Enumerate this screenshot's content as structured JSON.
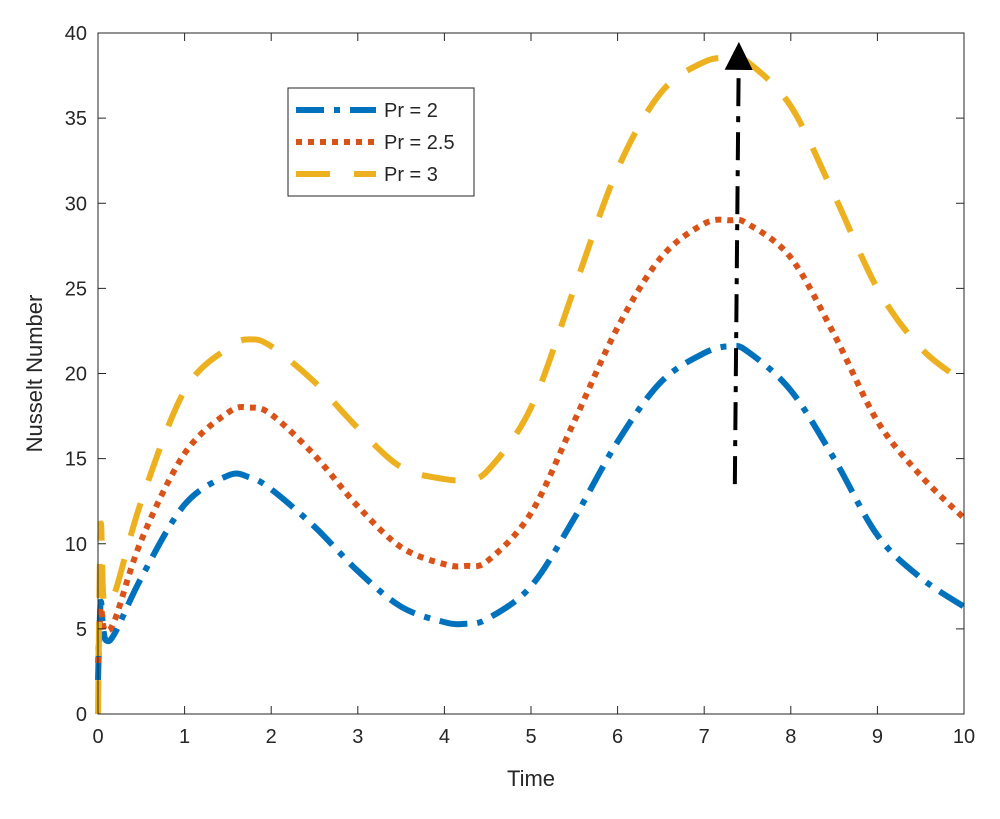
{
  "chart_data": {
    "type": "line",
    "xlabel": "Time",
    "ylabel": "Nusselt Number",
    "xlim": [
      0,
      10
    ],
    "ylim": [
      0,
      40
    ],
    "xticks": [
      "0",
      "1",
      "2",
      "3",
      "4",
      "5",
      "6",
      "7",
      "8",
      "9",
      "10"
    ],
    "yticks": [
      "0",
      "5",
      "10",
      "15",
      "20",
      "25",
      "30",
      "35",
      "40"
    ],
    "grid": false,
    "legend_position": "top-left",
    "x": [
      0,
      0.03,
      0.06,
      0.1,
      0.2,
      0.5,
      1,
      1.5,
      1.75,
      2,
      2.5,
      3,
      3.5,
      4,
      4.25,
      4.5,
      5,
      5.5,
      6,
      6.5,
      7,
      7.3,
      7.5,
      8,
      8.5,
      9,
      9.5,
      10
    ],
    "series": [
      {
        "name": "Pr = 2",
        "color": "#0072BD",
        "dash": "dash-dot",
        "values": [
          2,
          6.5,
          5,
          4.3,
          4.8,
          8,
          12.3,
          14,
          13.9,
          13.2,
          11,
          8.4,
          6.3,
          5.4,
          5.3,
          5.6,
          7.5,
          11.5,
          16,
          19.5,
          21.2,
          21.6,
          21.3,
          19,
          15,
          10.5,
          8,
          6.3
        ]
      },
      {
        "name": "Pr = 2.5",
        "color": "#D95319",
        "dash": "dotted",
        "values": [
          3,
          6.2,
          5.2,
          4.9,
          5.6,
          10.2,
          15.3,
          17.7,
          18,
          17.6,
          15.2,
          12.2,
          9.8,
          8.8,
          8.7,
          9,
          11.8,
          17.2,
          22.7,
          26.8,
          28.8,
          29,
          28.8,
          26.8,
          22.3,
          17.2,
          14,
          11.5
        ]
      },
      {
        "name": "Pr = 3",
        "color": "#EDB120",
        "dash": "long-dash",
        "values": [
          0,
          11,
          7,
          6.5,
          7.2,
          12.5,
          19,
          21.5,
          22,
          21.6,
          19.5,
          16.8,
          14.5,
          13.8,
          13.8,
          14.3,
          18,
          25,
          32,
          36.5,
          38.3,
          38.5,
          38.3,
          35.7,
          30.5,
          25,
          21.5,
          19.5
        ]
      }
    ],
    "annotations": [
      {
        "type": "arrow",
        "style": "dash-dot",
        "color": "#000000",
        "x": 7.4,
        "y_start": 13.5,
        "y_end": 39.5
      }
    ]
  }
}
